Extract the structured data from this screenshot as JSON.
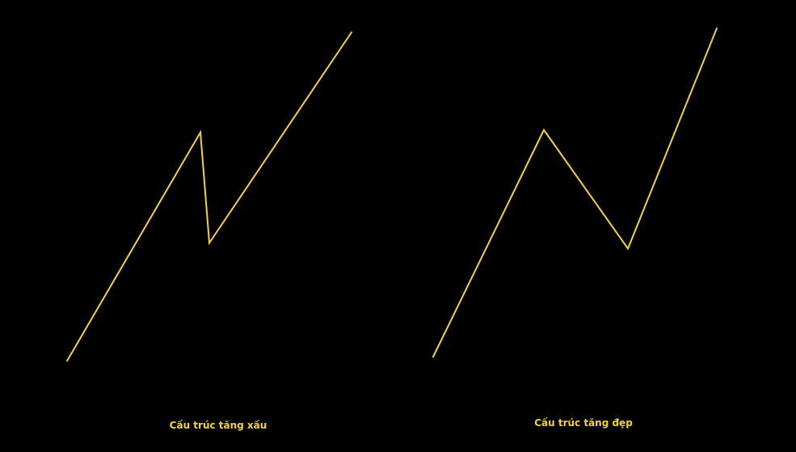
{
  "theme": {
    "background": "#000000",
    "line_color": "#f2d33b",
    "caption_color": "#f2d33b"
  },
  "diagrams": [
    {
      "caption": "Cấu trúc tăng xấu",
      "path_shape": "impulse up, sharp short correction, impulse up"
    },
    {
      "caption": "Cấu trúc tăng đẹp",
      "path_shape": "impulse up, deep correction, impulse up"
    }
  ]
}
